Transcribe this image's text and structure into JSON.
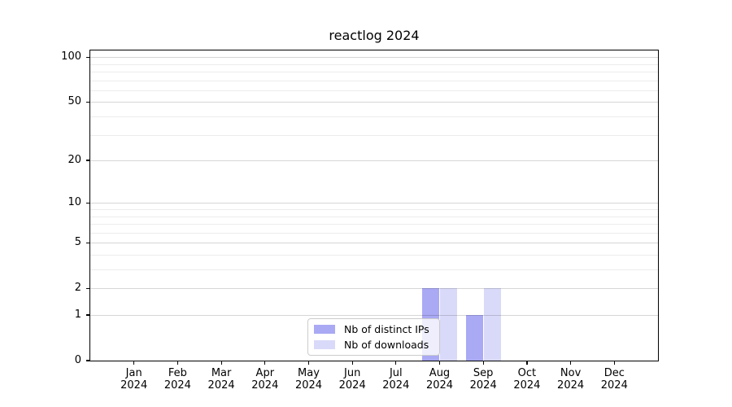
{
  "title": "reactlog 2024",
  "legend": {
    "items": [
      {
        "label": "Nb of distinct IPs",
        "color": "#a9a9f4"
      },
      {
        "label": "Nb of downloads",
        "color": "#d9d9f9"
      }
    ]
  },
  "chart_data": {
    "type": "bar",
    "title": "reactlog 2024",
    "categories": [
      "Jan 2024",
      "Feb 2024",
      "Mar 2024",
      "Apr 2024",
      "May 2024",
      "Jun 2024",
      "Jul 2024",
      "Aug 2024",
      "Sep 2024",
      "Oct 2024",
      "Nov 2024",
      "Dec 2024"
    ],
    "series": [
      {
        "name": "Nb of distinct IPs",
        "color": "#a9a9f4",
        "values": [
          0,
          0,
          0,
          0,
          0,
          0,
          0,
          2,
          1,
          0,
          0,
          0
        ]
      },
      {
        "name": "Nb of downloads",
        "color": "#d9d9f9",
        "values": [
          0,
          0,
          0,
          0,
          0,
          0,
          0,
          2,
          2,
          0,
          0,
          0
        ]
      }
    ],
    "xlabel": "",
    "ylabel": "",
    "yscale": "log1p",
    "yticks": [
      0,
      1,
      2,
      5,
      10,
      20,
      50,
      100
    ],
    "minor_yticks": [
      3,
      4,
      6,
      7,
      8,
      9,
      30,
      40,
      60,
      70,
      80,
      90
    ],
    "ylim": [
      0,
      112
    ],
    "grid": true,
    "legend_position": "inside-bottom-center"
  }
}
